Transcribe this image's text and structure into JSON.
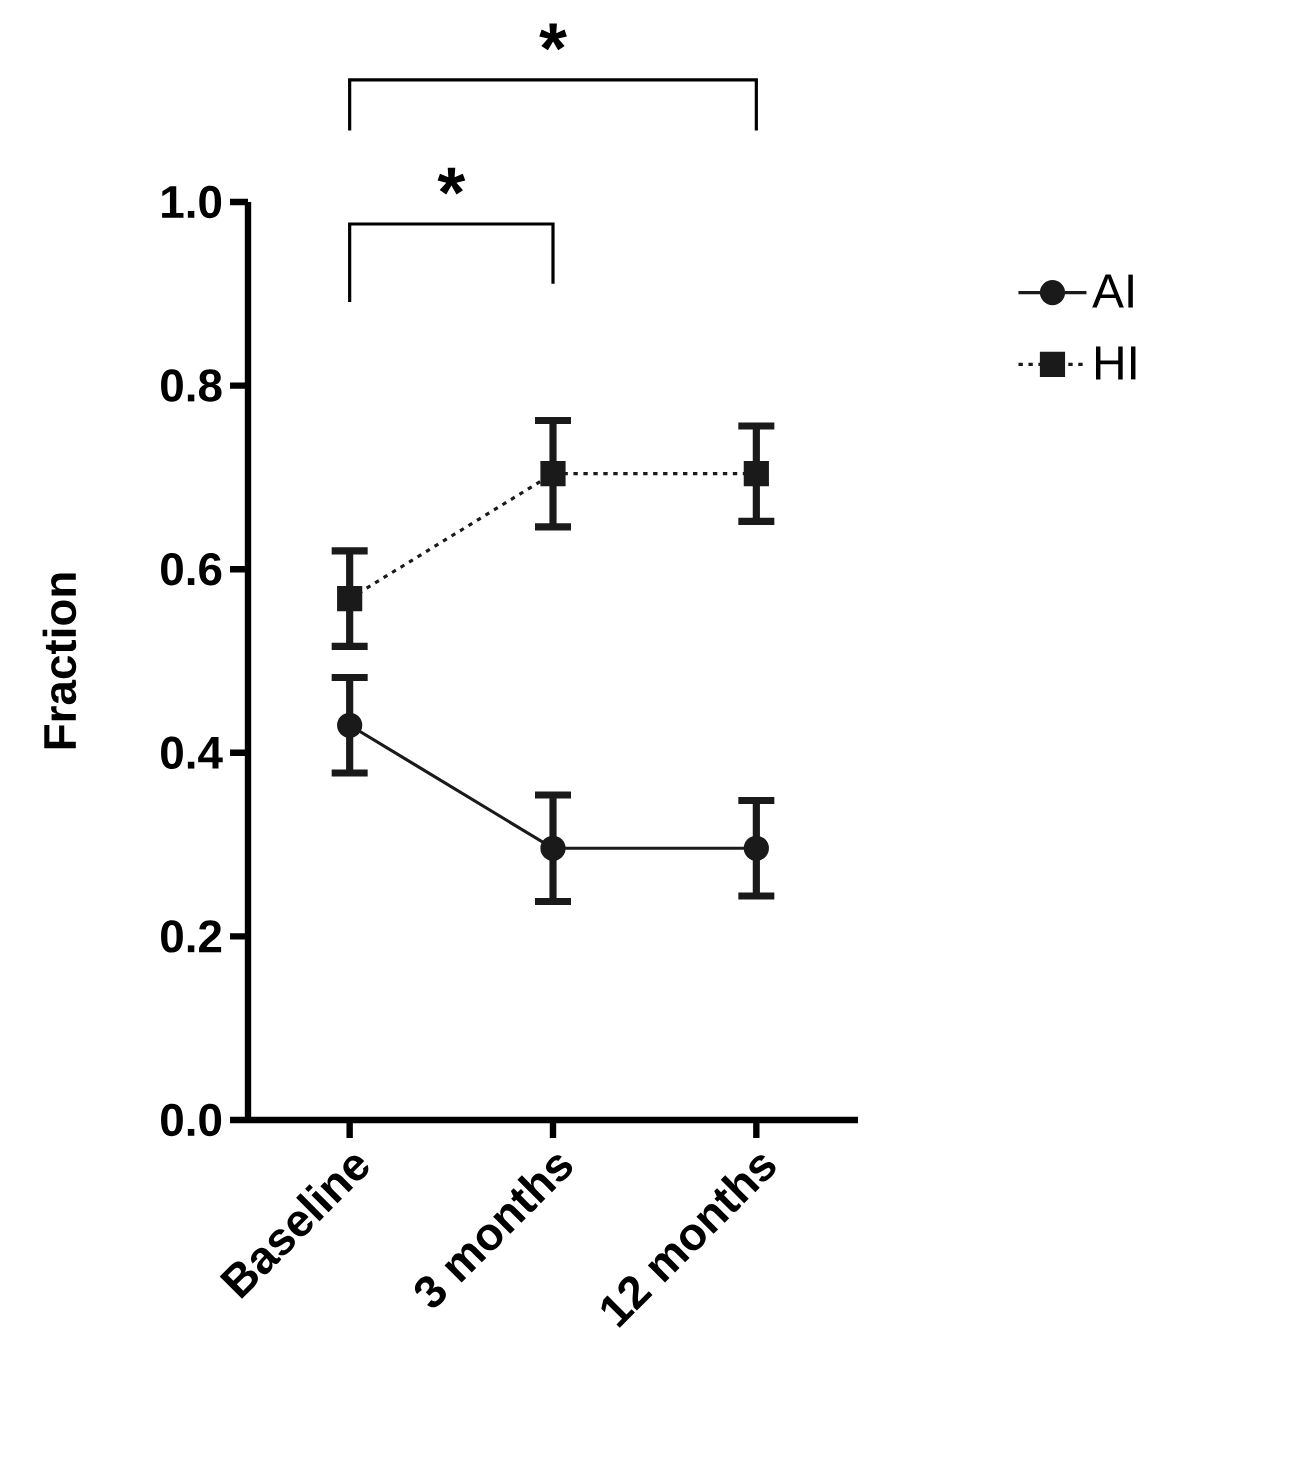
{
  "chart_data": {
    "type": "line",
    "ylabel": "Fraction",
    "categories": [
      "Baseline",
      "3 months",
      "12 months"
    ],
    "series": [
      {
        "name": "AI",
        "color": "#1a1a1a",
        "marker": "circle",
        "line_style": "solid",
        "values": [
          0.43,
          0.296,
          0.296
        ],
        "errors": [
          0.052,
          0.058,
          0.052
        ]
      },
      {
        "name": "HI",
        "color": "#1a1a1a",
        "marker": "square",
        "line_style": "dotted",
        "values": [
          0.568,
          0.704,
          0.704
        ],
        "errors": [
          0.052,
          0.058,
          0.052
        ]
      }
    ],
    "ylim": [
      0,
      1.0
    ],
    "yticks": [
      {
        "value": 0,
        "label": "0.0"
      },
      {
        "value": 0.2,
        "label": "0.2"
      },
      {
        "value": 0.4,
        "label": "0.4"
      },
      {
        "value": 0.6,
        "label": "0.6"
      },
      {
        "value": 0.8,
        "label": "0.8"
      },
      {
        "value": 1.0,
        "label": "1.0"
      }
    ],
    "legend": "top right",
    "annotations": [
      "*",
      "*"
    ]
  }
}
